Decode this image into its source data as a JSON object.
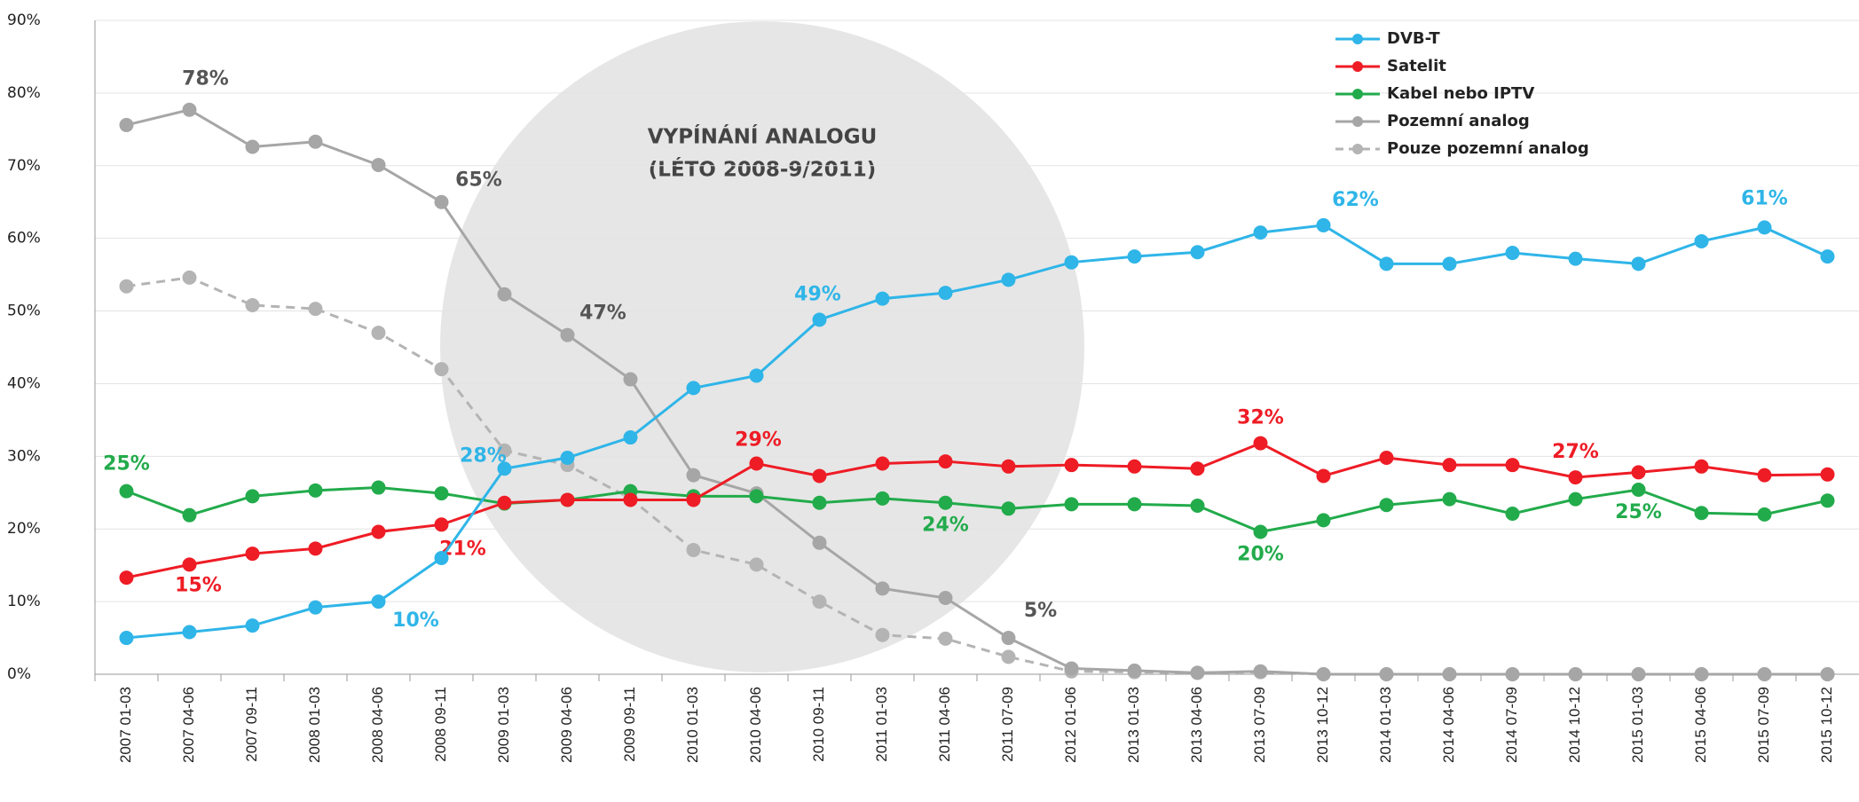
{
  "chart_data": {
    "type": "line",
    "categories": [
      "2007 01-03",
      "2007 04-06",
      "2007 09-11",
      "2008 01-03",
      "2008 04-06",
      "2008 09-11",
      "2009 01-03",
      "2009 04-06",
      "2009 09-11",
      "2010 01-03",
      "2010 04-06",
      "2010 09-11",
      "2011 01-03",
      "2011 04-06",
      "2011 07-09",
      "2012 01-06",
      "2013 01-03",
      "2013 04-06",
      "2013 07-09",
      "2013 10-12",
      "2014 01-03",
      "2014 04-06",
      "2014 07-09",
      "2014 10-12",
      "2015 01-03",
      "2015 04-06",
      "2015 07-09",
      "2015 10-12"
    ],
    "series": [
      {
        "name": "DVB-T",
        "color": "#2fb5e8",
        "dashed": false,
        "values": [
          5,
          5.8,
          6.7,
          9.2,
          10,
          16,
          28.3,
          29.8,
          32.6,
          39.4,
          41.1,
          48.8,
          51.7,
          52.5,
          54.3,
          56.7,
          57.5,
          58.1,
          60.8,
          61.8,
          56.5,
          56.5,
          58,
          57.2,
          56.5,
          59.6,
          61.5,
          57.5
        ],
        "value_labels": [
          null,
          null,
          null,
          null,
          "10%",
          null,
          "28%",
          null,
          null,
          null,
          null,
          "49%",
          null,
          null,
          null,
          null,
          null,
          null,
          null,
          "62%",
          null,
          null,
          null,
          null,
          null,
          null,
          "61%",
          null
        ]
      },
      {
        "name": "Satelit",
        "color": "#ee1c25",
        "dashed": false,
        "values": [
          13.3,
          15.1,
          16.6,
          17.3,
          19.6,
          20.6,
          23.6,
          24,
          24,
          24,
          29,
          27.3,
          29,
          29.3,
          28.6,
          28.8,
          28.6,
          28.3,
          31.8,
          27.3,
          29.8,
          28.8,
          28.8,
          27.1,
          27.8,
          28.6,
          27.4,
          27.5
        ],
        "value_labels": [
          null,
          "15%",
          null,
          null,
          null,
          "21%",
          null,
          null,
          null,
          null,
          "29%",
          null,
          null,
          null,
          null,
          null,
          null,
          null,
          "32%",
          null,
          null,
          null,
          null,
          "27%",
          null,
          null,
          null,
          null
        ]
      },
      {
        "name": "Kabel nebo IPTV",
        "color": "#22ab4b",
        "dashed": false,
        "values": [
          25.2,
          21.9,
          24.5,
          25.3,
          25.7,
          24.9,
          23.5,
          24,
          25.2,
          24.5,
          24.5,
          23.6,
          24.2,
          23.6,
          22.8,
          23.4,
          23.4,
          23.2,
          19.6,
          21.2,
          23.3,
          24.1,
          22.1,
          24.1,
          25.4,
          22.2,
          22,
          23.9
        ],
        "value_labels": [
          "25%",
          null,
          null,
          null,
          null,
          null,
          null,
          null,
          null,
          null,
          null,
          null,
          null,
          "24%",
          null,
          null,
          null,
          null,
          "20%",
          null,
          null,
          null,
          null,
          null,
          "25%",
          null,
          null,
          null
        ]
      },
      {
        "name": "Pozemní analog",
        "color": "#a6a6a6",
        "dashed": false,
        "values": [
          75.6,
          77.7,
          72.6,
          73.3,
          70.1,
          65,
          52.3,
          46.7,
          40.6,
          27.4,
          24.9,
          18.1,
          11.8,
          10.5,
          5,
          0.8,
          0.5,
          0.2,
          0.4,
          0,
          0,
          0,
          0,
          0,
          0,
          0,
          0,
          0
        ],
        "value_labels": [
          null,
          "78%",
          null,
          null,
          null,
          "65%",
          null,
          "47%",
          null,
          null,
          null,
          null,
          null,
          null,
          "5%",
          null,
          null,
          null,
          null,
          null,
          null,
          null,
          null,
          null,
          null,
          null,
          null,
          null
        ]
      },
      {
        "name": "Pouze pozemní analog",
        "color": "#b4b4b4",
        "dashed": true,
        "values": [
          53.4,
          54.6,
          50.8,
          50.3,
          47,
          42,
          30.8,
          28.8,
          24.2,
          17.1,
          15.1,
          10,
          5.4,
          4.9,
          2.4,
          0.4,
          0.3,
          0.2,
          0.3,
          0,
          0,
          0,
          0,
          0,
          0,
          0,
          0,
          0
        ],
        "value_labels": [
          null,
          null,
          null,
          null,
          null,
          null,
          null,
          null,
          null,
          null,
          null,
          null,
          null,
          null,
          null,
          null,
          null,
          null,
          null,
          null,
          null,
          null,
          null,
          null,
          null,
          null,
          null,
          null
        ]
      }
    ],
    "annotations": [
      "VYPÍNÁNÍ ANALOGU",
      "(LÉTO 2008-9/2011)"
    ],
    "ylim": [
      0,
      90
    ],
    "yticks": [
      {
        "value": 0,
        "label": "0%"
      },
      {
        "value": 10,
        "label": "10%"
      },
      {
        "value": 20,
        "label": "20%"
      },
      {
        "value": 30,
        "label": "30%"
      },
      {
        "value": 40,
        "label": "40%"
      },
      {
        "value": 50,
        "label": "50%"
      },
      {
        "value": 60,
        "label": "60%"
      },
      {
        "value": 70,
        "label": "70%"
      },
      {
        "value": 80,
        "label": "80%"
      },
      {
        "value": 90,
        "label": "90%"
      }
    ],
    "grid": true,
    "legend": "upper right"
  }
}
